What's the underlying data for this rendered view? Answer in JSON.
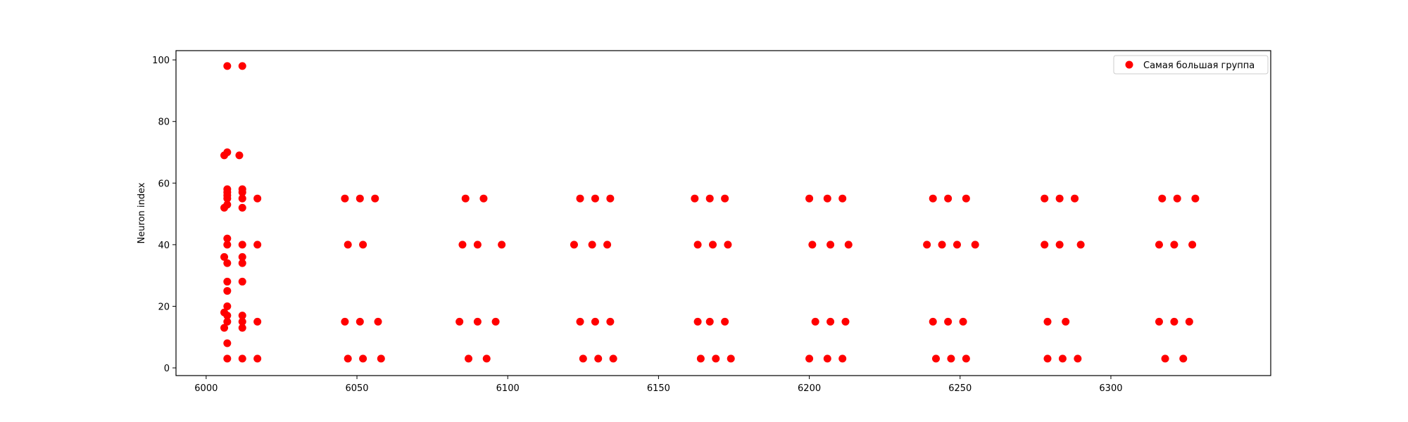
{
  "chart_data": {
    "type": "scatter",
    "title": "",
    "xlabel": "",
    "ylabel": "Neuron index",
    "xlim": [
      5990,
      6353
    ],
    "ylim": [
      -2.5,
      103
    ],
    "xticks": [
      6000,
      6050,
      6100,
      6150,
      6200,
      6250,
      6300
    ],
    "yticks": [
      0,
      20,
      40,
      60,
      80,
      100
    ],
    "grid": false,
    "legend_position": "top-right",
    "series": [
      {
        "name": "Самая большая группа",
        "color": "#ff0000",
        "marker": "circle",
        "points": [
          [
            6007,
            98
          ],
          [
            6012,
            98
          ],
          [
            6006,
            69
          ],
          [
            6007,
            70
          ],
          [
            6011,
            69
          ],
          [
            6007,
            58
          ],
          [
            6007,
            57
          ],
          [
            6007,
            56
          ],
          [
            6007,
            55
          ],
          [
            6007,
            53
          ],
          [
            6006,
            52
          ],
          [
            6012,
            58
          ],
          [
            6012,
            57
          ],
          [
            6012,
            55
          ],
          [
            6012,
            52
          ],
          [
            6017,
            55
          ],
          [
            6007,
            42
          ],
          [
            6007,
            40
          ],
          [
            6012,
            40
          ],
          [
            6017,
            40
          ],
          [
            6006,
            36
          ],
          [
            6007,
            34
          ],
          [
            6012,
            36
          ],
          [
            6012,
            34
          ],
          [
            6007,
            28
          ],
          [
            6012,
            28
          ],
          [
            6007,
            25
          ],
          [
            6007,
            20
          ],
          [
            6006,
            18
          ],
          [
            6007,
            17
          ],
          [
            6012,
            17
          ],
          [
            6007,
            15
          ],
          [
            6012,
            15
          ],
          [
            6017,
            15
          ],
          [
            6006,
            13
          ],
          [
            6012,
            13
          ],
          [
            6007,
            8
          ],
          [
            6007,
            3
          ],
          [
            6012,
            3
          ],
          [
            6017,
            3
          ],
          [
            6046,
            55
          ],
          [
            6051,
            55
          ],
          [
            6056,
            55
          ],
          [
            6047,
            40
          ],
          [
            6052,
            40
          ],
          [
            6046,
            15
          ],
          [
            6051,
            15
          ],
          [
            6057,
            15
          ],
          [
            6047,
            3
          ],
          [
            6052,
            3
          ],
          [
            6058,
            3
          ],
          [
            6086,
            55
          ],
          [
            6092,
            55
          ],
          [
            6085,
            40
          ],
          [
            6090,
            40
          ],
          [
            6098,
            40
          ],
          [
            6084,
            15
          ],
          [
            6090,
            15
          ],
          [
            6096,
            15
          ],
          [
            6087,
            3
          ],
          [
            6093,
            3
          ],
          [
            6124,
            55
          ],
          [
            6129,
            55
          ],
          [
            6134,
            55
          ],
          [
            6122,
            40
          ],
          [
            6128,
            40
          ],
          [
            6133,
            40
          ],
          [
            6124,
            15
          ],
          [
            6129,
            15
          ],
          [
            6134,
            15
          ],
          [
            6125,
            3
          ],
          [
            6130,
            3
          ],
          [
            6135,
            3
          ],
          [
            6162,
            55
          ],
          [
            6167,
            55
          ],
          [
            6172,
            55
          ],
          [
            6163,
            40
          ],
          [
            6168,
            40
          ],
          [
            6173,
            40
          ],
          [
            6163,
            15
          ],
          [
            6167,
            15
          ],
          [
            6172,
            15
          ],
          [
            6164,
            3
          ],
          [
            6169,
            3
          ],
          [
            6174,
            3
          ],
          [
            6200,
            55
          ],
          [
            6206,
            55
          ],
          [
            6211,
            55
          ],
          [
            6201,
            40
          ],
          [
            6207,
            40
          ],
          [
            6213,
            40
          ],
          [
            6202,
            15
          ],
          [
            6207,
            15
          ],
          [
            6212,
            15
          ],
          [
            6200,
            3
          ],
          [
            6206,
            3
          ],
          [
            6211,
            3
          ],
          [
            6241,
            55
          ],
          [
            6246,
            55
          ],
          [
            6252,
            55
          ],
          [
            6239,
            40
          ],
          [
            6244,
            40
          ],
          [
            6249,
            40
          ],
          [
            6255,
            40
          ],
          [
            6241,
            15
          ],
          [
            6246,
            15
          ],
          [
            6251,
            15
          ],
          [
            6242,
            3
          ],
          [
            6247,
            3
          ],
          [
            6252,
            3
          ],
          [
            6278,
            55
          ],
          [
            6283,
            55
          ],
          [
            6288,
            55
          ],
          [
            6278,
            40
          ],
          [
            6283,
            40
          ],
          [
            6290,
            40
          ],
          [
            6279,
            15
          ],
          [
            6285,
            15
          ],
          [
            6279,
            3
          ],
          [
            6284,
            3
          ],
          [
            6289,
            3
          ],
          [
            6317,
            55
          ],
          [
            6322,
            55
          ],
          [
            6328,
            55
          ],
          [
            6316,
            40
          ],
          [
            6321,
            40
          ],
          [
            6327,
            40
          ],
          [
            6316,
            15
          ],
          [
            6321,
            15
          ],
          [
            6326,
            15
          ],
          [
            6318,
            3
          ],
          [
            6324,
            3
          ]
        ]
      }
    ]
  }
}
